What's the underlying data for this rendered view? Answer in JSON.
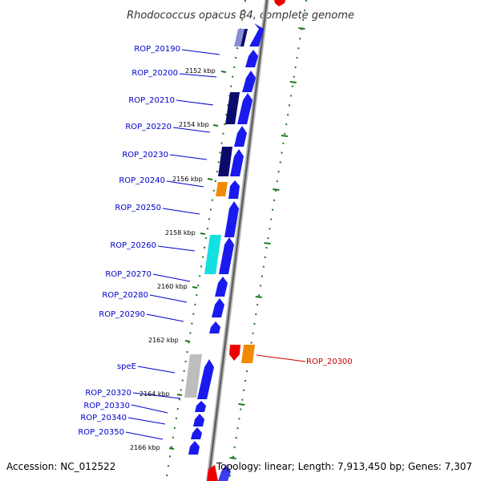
{
  "title": "Rhodococcus opacus B4, complete genome",
  "accession": "Accession: NC_012522",
  "topology": "Topology: linear; Length: 7,913,450 bp; Genes: 7,307",
  "colors": {
    "gene_blue": "#1a1aee",
    "gene_dark": "#0b0b6e",
    "gene_orange": "#f08a00",
    "gene_cyan": "#14e0e0",
    "gene_gray": "#bdbdbd",
    "gene_red": "#ee0000",
    "label_blue": "#0000cc",
    "label_red": "#cc0000",
    "tick_green": "#1a7a1a"
  },
  "kbp_labels": [
    "2152 kbp",
    "2154 kbp",
    "2156 kbp",
    "2158 kbp",
    "2160 kbp",
    "2162 kbp",
    "2164 kbp",
    "2166 kbp"
  ],
  "gene_labels": [
    "ROP_20190",
    "ROP_20200",
    "ROP_20210",
    "ROP_20220",
    "ROP_20230",
    "ROP_20240",
    "ROP_20250",
    "ROP_20260",
    "ROP_20270",
    "ROP_20280",
    "ROP_20290",
    "speE",
    "ROP_20320",
    "ROP_20330",
    "ROP_20340",
    "ROP_20350"
  ],
  "right_label": "ROP_20300"
}
